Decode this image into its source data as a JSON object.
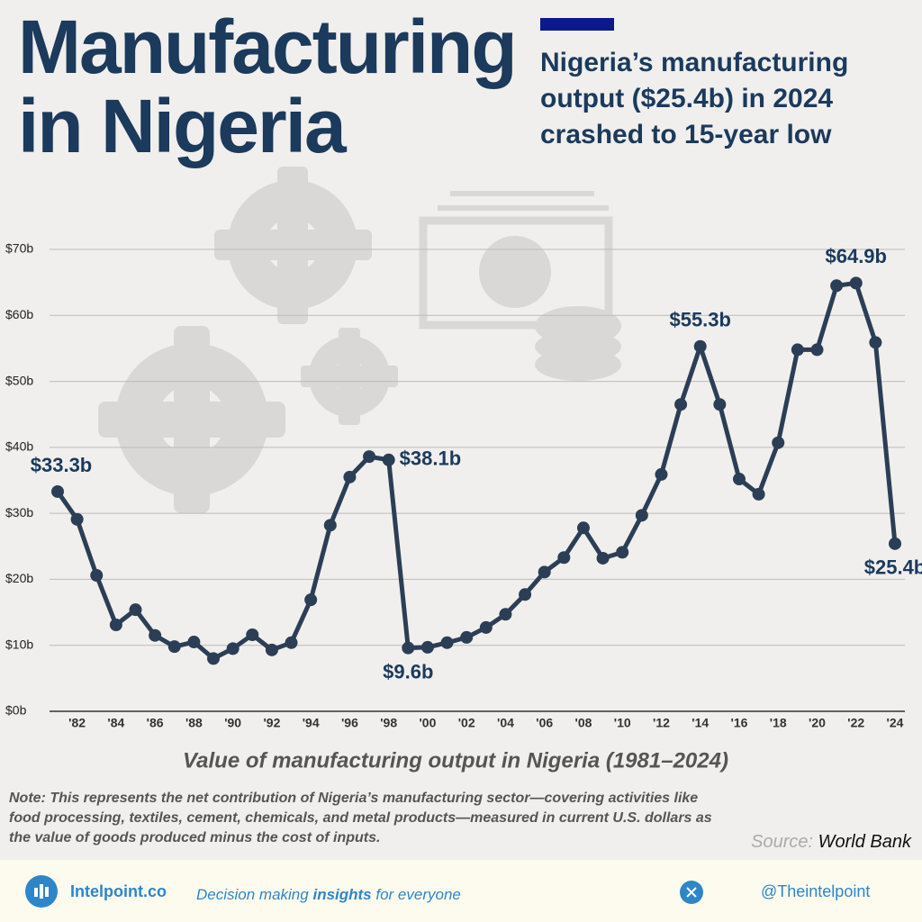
{
  "header": {
    "title": "Manufacturing in Nigeria",
    "subtitle": "Nigeria’s manufacturing output ($25.4b) in 2024 crashed to 15-year low"
  },
  "chart_data": {
    "type": "line",
    "x": [
      1981,
      1982,
      1983,
      1984,
      1985,
      1986,
      1987,
      1988,
      1989,
      1990,
      1991,
      1992,
      1993,
      1994,
      1995,
      1996,
      1997,
      1998,
      1999,
      2000,
      2001,
      2002,
      2003,
      2004,
      2005,
      2006,
      2007,
      2008,
      2009,
      2010,
      2011,
      2012,
      2013,
      2014,
      2015,
      2016,
      2017,
      2018,
      2019,
      2020,
      2021,
      2022,
      2023,
      2024
    ],
    "series": [
      {
        "color": "#2c3e55",
        "values": [
          33.3,
          29.1,
          20.6,
          13.1,
          15.4,
          11.5,
          9.8,
          10.5,
          8.0,
          9.5,
          11.6,
          9.3,
          10.4,
          16.9,
          28.2,
          35.5,
          38.6,
          38.1,
          9.6,
          9.7,
          10.4,
          11.2,
          12.7,
          14.7,
          17.7,
          21.1,
          23.3,
          27.8,
          23.2,
          24.1,
          29.7,
          35.9,
          46.5,
          55.3,
          46.5,
          35.2,
          32.9,
          40.7,
          54.8,
          54.8,
          64.5,
          64.9,
          55.9,
          25.4
        ],
        "value_labels": [
          "$33.3b",
          null,
          null,
          null,
          null,
          null,
          null,
          null,
          null,
          null,
          null,
          null,
          null,
          null,
          null,
          null,
          null,
          "$38.1b",
          "$9.6b",
          null,
          null,
          null,
          null,
          null,
          null,
          null,
          null,
          null,
          null,
          null,
          null,
          null,
          null,
          "$55.3b",
          null,
          null,
          null,
          null,
          null,
          null,
          null,
          "$64.9b",
          null,
          "$25.4b"
        ]
      }
    ],
    "xlim": [
      1981,
      2024
    ],
    "xticks": [
      {
        "value": 1982,
        "label": "'82"
      },
      {
        "value": 1984,
        "label": "'84"
      },
      {
        "value": 1986,
        "label": "'86"
      },
      {
        "value": 1988,
        "label": "'88"
      },
      {
        "value": 1990,
        "label": "'90"
      },
      {
        "value": 1992,
        "label": "'92"
      },
      {
        "value": 1994,
        "label": "'94"
      },
      {
        "value": 1996,
        "label": "'96"
      },
      {
        "value": 1998,
        "label": "'98"
      },
      {
        "value": 2000,
        "label": "'00"
      },
      {
        "value": 2002,
        "label": "'02"
      },
      {
        "value": 2004,
        "label": "'04"
      },
      {
        "value": 2006,
        "label": "'06"
      },
      {
        "value": 2008,
        "label": "'08"
      },
      {
        "value": 2010,
        "label": "'10"
      },
      {
        "value": 2012,
        "label": "'12"
      },
      {
        "value": 2014,
        "label": "'14"
      },
      {
        "value": 2016,
        "label": "'16"
      },
      {
        "value": 2018,
        "label": "'18"
      },
      {
        "value": 2020,
        "label": "'20"
      },
      {
        "value": 2022,
        "label": "'22"
      },
      {
        "value": 2024,
        "label": "'24"
      }
    ],
    "ylim": [
      0,
      70
    ],
    "yticks": [
      {
        "value": 0,
        "label": "$0b"
      },
      {
        "value": 10,
        "label": "$10b"
      },
      {
        "value": 20,
        "label": "$20b"
      },
      {
        "value": 30,
        "label": "$30b"
      },
      {
        "value": 40,
        "label": "$40b"
      },
      {
        "value": 50,
        "label": "$50b"
      },
      {
        "value": 60,
        "label": "$60b"
      },
      {
        "value": 70,
        "label": "$70b"
      }
    ],
    "grid": true,
    "x_label": "Value of manufacturing output in Nigeria (1981–2024)"
  },
  "note": "Note: This represents the net contribution of Nigeria’s manufacturing sector—covering activities like food processing, textiles, cement, chemicals, and metal products—measured in current U.S. dollars as the value of goods produced minus the cost of inputs.",
  "source": {
    "label": "Source:",
    "name": "World Bank"
  },
  "footer": {
    "site": "Intelpoint.co",
    "tagline": [
      "Decision making",
      "insights",
      "for everyone"
    ],
    "handle": "@Theintelpoint"
  }
}
